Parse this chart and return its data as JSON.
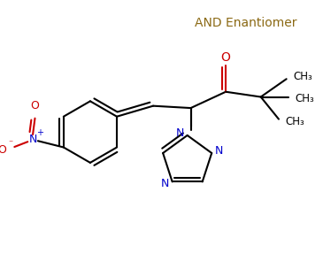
{
  "annotation": "AND Enantiomer",
  "annotation_color": "#8B6914",
  "annotation_fontsize": 10,
  "bg_color": "#ffffff",
  "bond_color": "#000000",
  "bond_lw": 1.5,
  "atom_colors": {
    "O": "#cc0000",
    "N": "#0000cc",
    "C": "#000000"
  },
  "xlim": [
    0,
    7.3
  ],
  "ylim": [
    0,
    6.08
  ]
}
